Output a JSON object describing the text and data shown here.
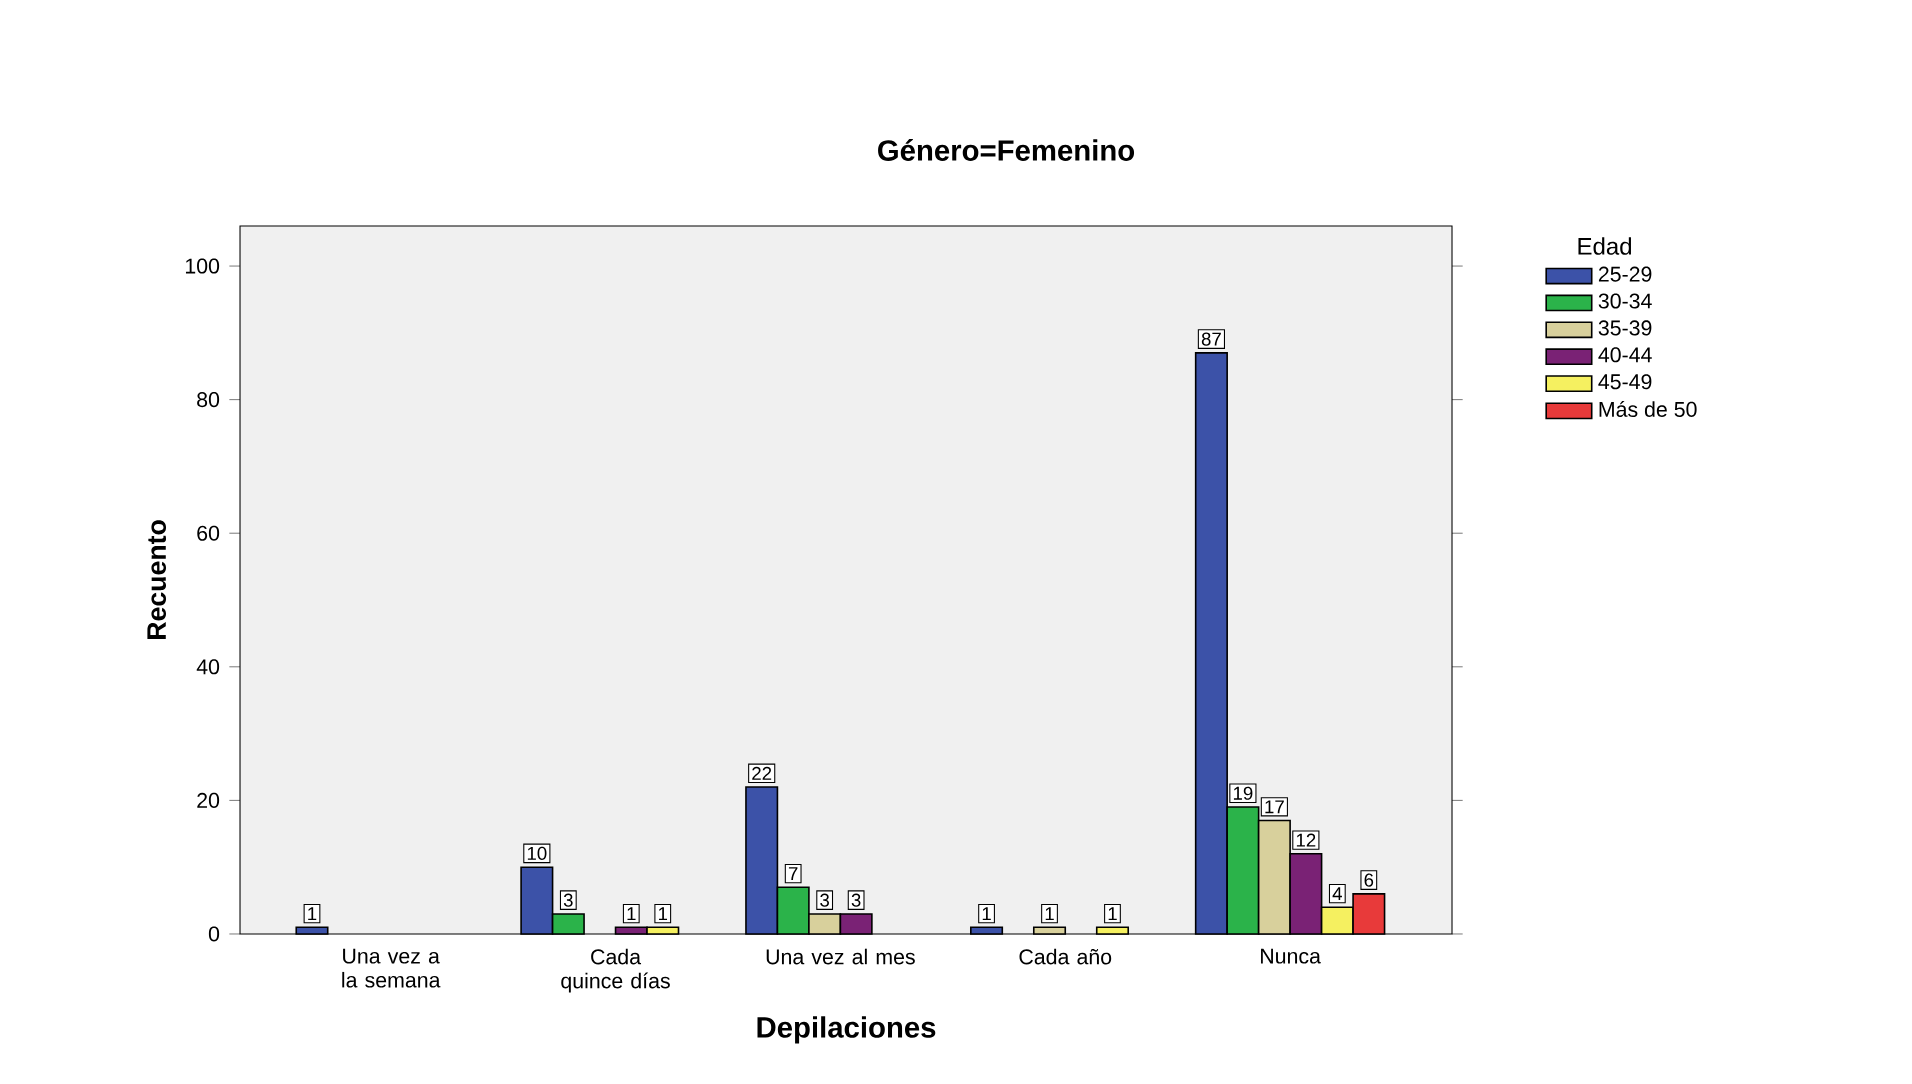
{
  "chart_data": {
    "type": "bar",
    "title": "Género=Femenino",
    "xlabel": "Depilaciones",
    "ylabel": "Recuento",
    "legend_title": "Edad",
    "legend": "right",
    "categories": [
      "Una vez a la semana",
      "Cada quince días",
      "Una vez al mes",
      "Cada año",
      "Nunca"
    ],
    "ylim": [
      0,
      106
    ],
    "yticks": [
      0,
      20,
      40,
      60,
      80,
      100
    ],
    "data_labels": true,
    "series": [
      {
        "name": "25-29",
        "color": "#3c52a8",
        "values": [
          1,
          10,
          22,
          1,
          87
        ]
      },
      {
        "name": "30-34",
        "color": "#2bb34a",
        "values": [
          null,
          3,
          7,
          null,
          19
        ]
      },
      {
        "name": "35-39",
        "color": "#d8d09c",
        "values": [
          null,
          null,
          3,
          1,
          17
        ]
      },
      {
        "name": "40-44",
        "color": "#7a2275",
        "values": [
          null,
          1,
          3,
          null,
          12
        ]
      },
      {
        "name": "45-49",
        "color": "#f5f060",
        "values": [
          null,
          1,
          null,
          1,
          4
        ]
      },
      {
        "name": "Más de 50",
        "color": "#e83a3a",
        "values": [
          null,
          null,
          null,
          null,
          6
        ]
      }
    ]
  }
}
